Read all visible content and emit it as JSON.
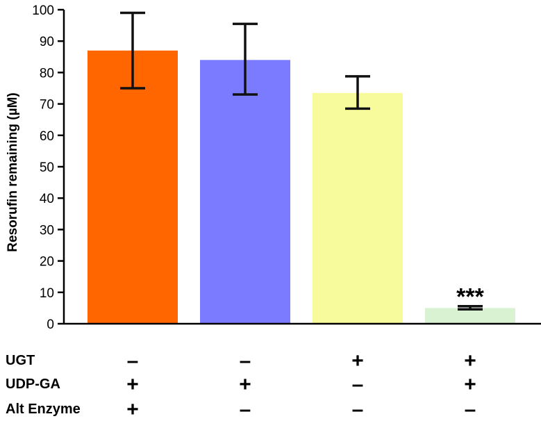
{
  "chart_data": {
    "type": "bar",
    "ylabel": "Resorufin remaining (µM)",
    "ylim": [
      0,
      100
    ],
    "yticks": [
      0,
      10,
      20,
      30,
      40,
      50,
      60,
      70,
      80,
      90,
      100
    ],
    "bars": [
      {
        "value": 87,
        "err_low": 75,
        "err_high": 99,
        "color": "#ff6600"
      },
      {
        "value": 84,
        "err_low": 73,
        "err_high": 95.5,
        "color": "#7b7bff"
      },
      {
        "value": 73.5,
        "err_low": 68.5,
        "err_high": 78.8,
        "color": "#f8fb9b"
      },
      {
        "value": 5,
        "err_low": 4.6,
        "err_high": 5.6,
        "color": "#d8f2d2",
        "annotation": "***"
      }
    ],
    "conditions": [
      {
        "name": "UGT",
        "signs": [
          "–",
          "–",
          "+",
          "+"
        ]
      },
      {
        "name": "UDP-GA",
        "signs": [
          "+",
          "+",
          "–",
          "+"
        ]
      },
      {
        "name": "Alt Enzyme",
        "signs": [
          "+",
          "–",
          "–",
          "–"
        ]
      }
    ],
    "grid": false,
    "legend": "none"
  }
}
